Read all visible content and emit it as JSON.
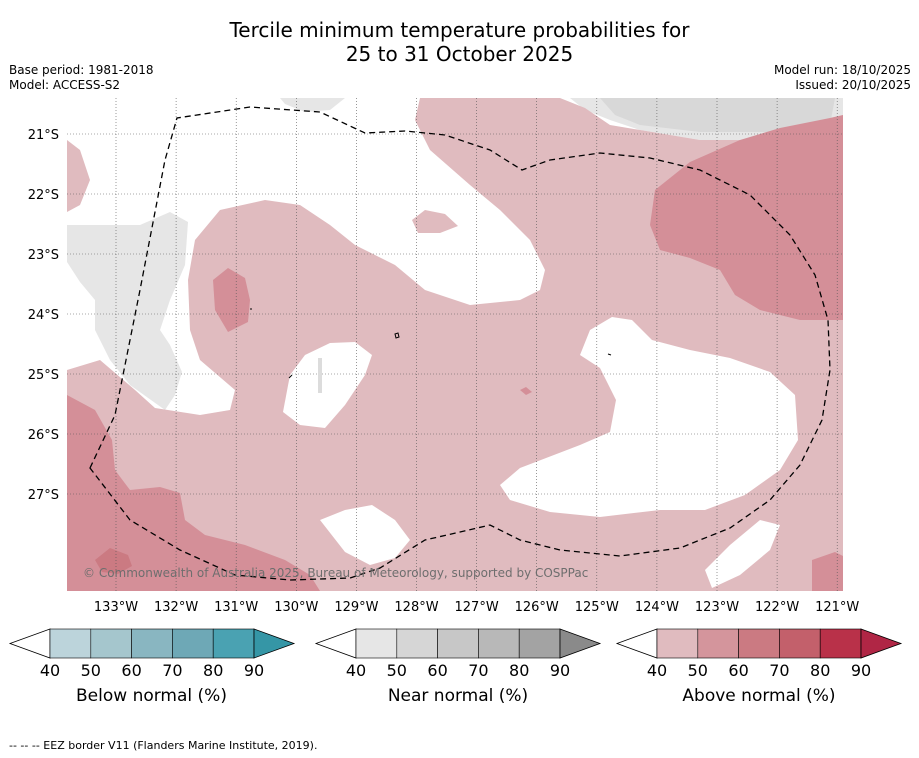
{
  "title": {
    "line1": "Tercile minimum temperature probabilities for",
    "line2": "25 to 31 October 2025"
  },
  "meta": {
    "base_period": "Base period: 1981-2018",
    "model": "Model: ACCESS-S2",
    "model_run": "Model run: 18/10/2025",
    "issued": "Issued: 20/10/2025"
  },
  "map": {
    "lat_labels": [
      "21°S",
      "22°S",
      "23°S",
      "24°S",
      "25°S",
      "26°S",
      "27°S"
    ],
    "lon_labels": [
      "133°W",
      "132°W",
      "131°W",
      "130°W",
      "129°W",
      "128°W",
      "127°W",
      "126°W",
      "125°W",
      "124°W",
      "123°W",
      "122°W",
      "121°W"
    ],
    "copyright": "© Commonwealth of Australia 2025, Bureau of Meteorology, supported by COSPPac",
    "colors": {
      "above_40": "#e0bbbf",
      "above_50": "#d48f98",
      "near_40": "#e6e6e6",
      "near_50": "#d8d8d8"
    }
  },
  "colorbars": [
    {
      "title": "Below normal (%)",
      "ticks": [
        "40",
        "50",
        "60",
        "70",
        "80",
        "90"
      ],
      "colors": [
        "#bcd4db",
        "#a5c6cd",
        "#89b6c1",
        "#6ea8b6",
        "#4aa2b2",
        "#3596a6"
      ]
    },
    {
      "title": "Near normal (%)",
      "ticks": [
        "40",
        "50",
        "60",
        "70",
        "80",
        "90"
      ],
      "colors": [
        "#e6e6e6",
        "#d6d6d6",
        "#c7c7c7",
        "#b8b8b8",
        "#a3a3a3",
        "#8a8a8a"
      ]
    },
    {
      "title": "Above normal (%)",
      "ticks": [
        "40",
        "50",
        "60",
        "70",
        "80",
        "90"
      ],
      "colors": [
        "#e0bbbf",
        "#d4959c",
        "#cb7a82",
        "#c3606b",
        "#b93149",
        "#b02645"
      ]
    }
  ],
  "footnote": "--  --  -- EEZ border V11 (Flanders Marine Institute, 2019)."
}
